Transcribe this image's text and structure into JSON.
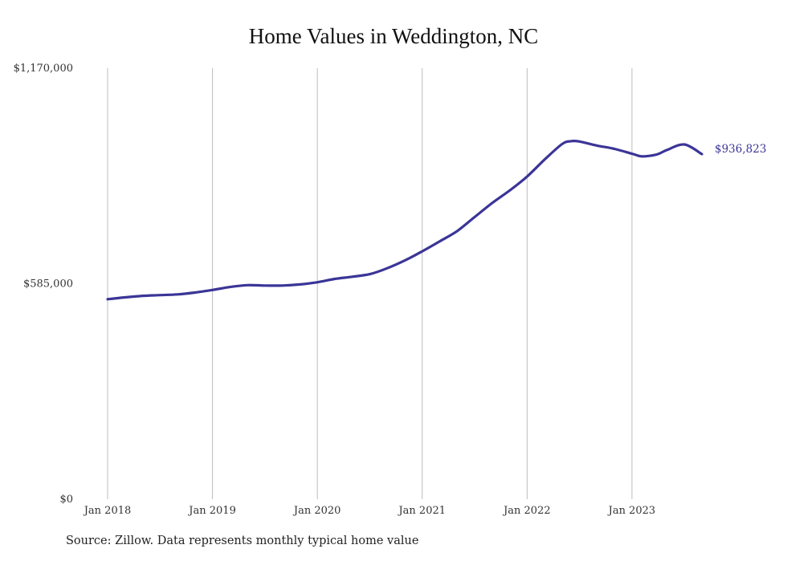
{
  "chart_data": {
    "type": "line",
    "title": "Home Values in Weddington, NC",
    "source": "Source: Zillow. Data represents monthly typical home value",
    "xlabel": "",
    "ylabel": "",
    "ylim": [
      0,
      1170000
    ],
    "yticks": [
      {
        "value": 0,
        "label": "$0"
      },
      {
        "value": 585000,
        "label": "$585,000"
      },
      {
        "value": 1170000,
        "label": "$1,170,000"
      }
    ],
    "xlim": [
      "2018-01",
      "2023-09"
    ],
    "xticks": [
      {
        "x": "2018-01",
        "label": "Jan 2018"
      },
      {
        "x": "2019-01",
        "label": "Jan 2019"
      },
      {
        "x": "2020-01",
        "label": "Jan 2020"
      },
      {
        "x": "2021-01",
        "label": "Jan 2021"
      },
      {
        "x": "2022-01",
        "label": "Jan 2022"
      },
      {
        "x": "2023-01",
        "label": "Jan 2023"
      }
    ],
    "grid": "vertical",
    "line_color": "#3b3597",
    "end_label": "$936,823",
    "series": [
      {
        "x": [
          "2018-01",
          "2018-03",
          "2018-05",
          "2018-07",
          "2018-09",
          "2018-11",
          "2019-01",
          "2019-03",
          "2019-05",
          "2019-07",
          "2019-09",
          "2019-11",
          "2020-01",
          "2020-03",
          "2020-05",
          "2020-07",
          "2020-09",
          "2020-11",
          "2021-01",
          "2021-03",
          "2021-05",
          "2021-07",
          "2021-09",
          "2021-11",
          "2022-01",
          "2022-03",
          "2022-05",
          "2022-06",
          "2022-07",
          "2022-09",
          "2022-11",
          "2023-01",
          "2023-02",
          "2023-03",
          "2023-04",
          "2023-05",
          "2023-07",
          "2023-09"
        ],
        "y": [
          543000,
          548000,
          552000,
          554000,
          556000,
          561000,
          568000,
          576000,
          581000,
          580000,
          580000,
          583000,
          589000,
          598000,
          604000,
          611000,
          627000,
          648000,
          673000,
          700000,
          728000,
          766000,
          804000,
          838000,
          876000,
          922000,
          964000,
          972000,
          971000,
          960000,
          951000,
          938000,
          931000,
          932000,
          937000,
          948000,
          963000,
          936823
        ]
      }
    ]
  }
}
